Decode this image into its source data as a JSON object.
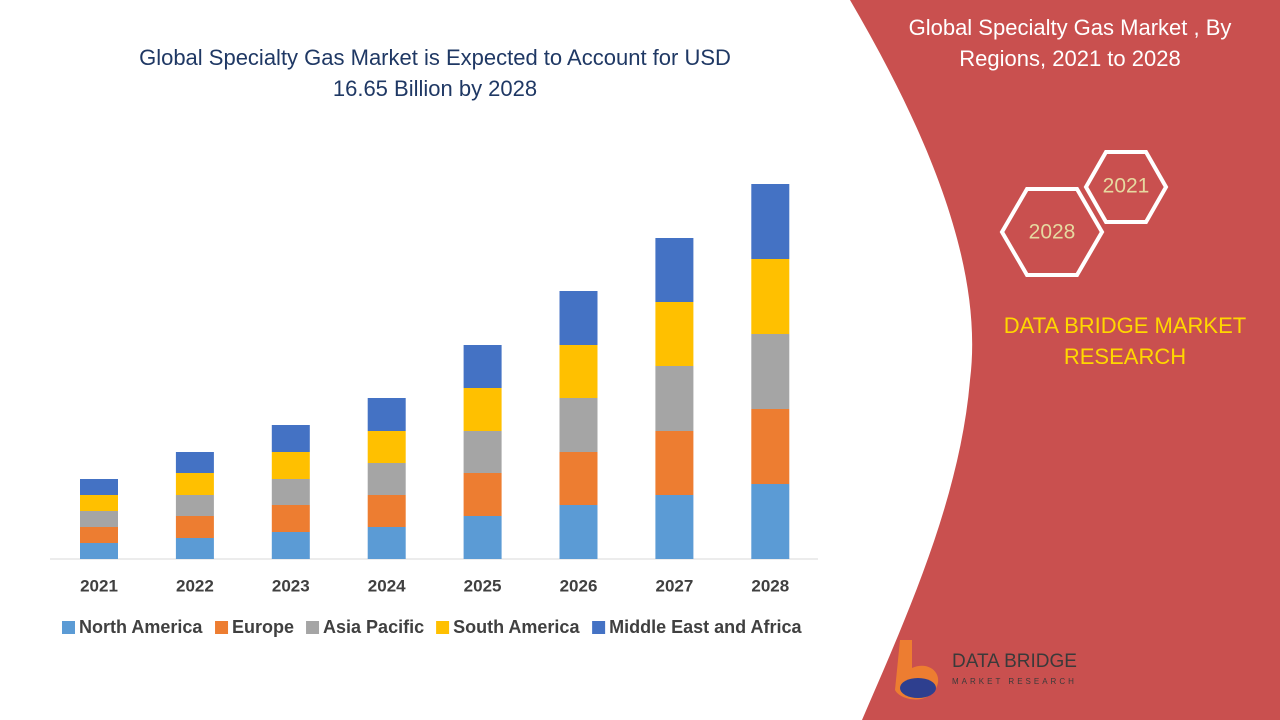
{
  "chart_data": {
    "type": "stacked-bar",
    "title": "Global Specialty Gas Market is Expected to Account for USD 16.65 Billion by 2028",
    "categories": [
      "2021",
      "2022",
      "2023",
      "2024",
      "2025",
      "2026",
      "2027",
      "2028"
    ],
    "series": [
      {
        "name": "North America",
        "color": "#5b9bd5",
        "values": [
          16,
          21,
          27,
          32,
          43,
          54,
          64,
          75
        ]
      },
      {
        "name": "Europe",
        "color": "#ed7d31",
        "values": [
          16,
          22,
          27,
          32,
          43,
          53,
          64,
          75
        ]
      },
      {
        "name": "Asia Pacific",
        "color": "#a5a5a5",
        "values": [
          16,
          21,
          26,
          32,
          42,
          54,
          65,
          75
        ]
      },
      {
        "name": "South America",
        "color": "#ffc000",
        "values": [
          16,
          22,
          27,
          32,
          43,
          53,
          64,
          75
        ]
      },
      {
        "name": "Middle East and Africa",
        "color": "#4472c4",
        "values": [
          16,
          21,
          27,
          33,
          43,
          54,
          64,
          75
        ]
      }
    ]
  },
  "panel": {
    "heading": "Global Specialty Gas Market , By Regions, 2021 to 2028",
    "hexagons": [
      "2021",
      "2028"
    ],
    "brand": "DATA BRIDGE MARKET RESEARCH",
    "logo": {
      "name": "DATA BRIDGE",
      "tagline": "MARKET RESEARCH"
    }
  }
}
